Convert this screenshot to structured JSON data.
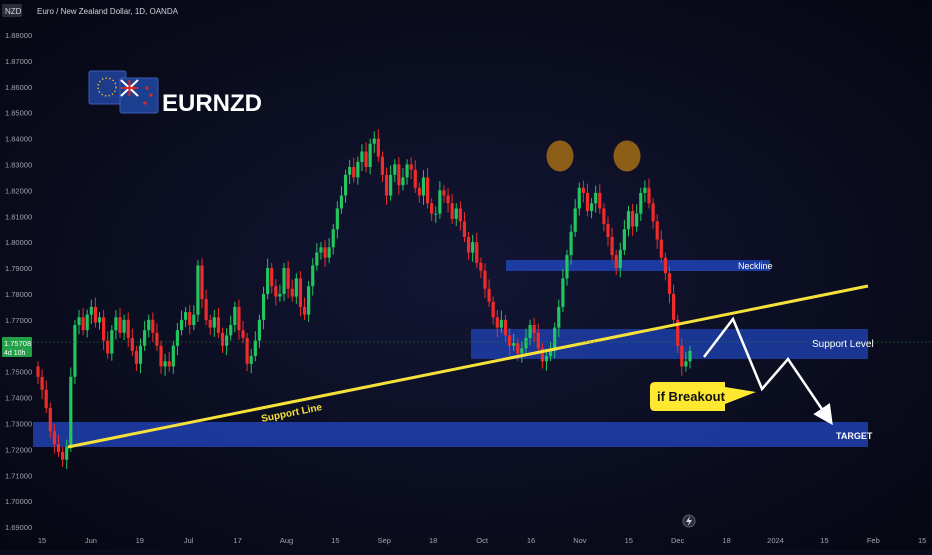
{
  "header": {
    "currency_badge": "NZD",
    "title": "Euro / New Zealand Dollar, 1D, OANDA"
  },
  "logo": {
    "ticker": "EURNZD"
  },
  "price_tag": {
    "price": "1.75708",
    "countdown": "4d 10h"
  },
  "annotations": {
    "neckline": "Neckline",
    "support_level": "Support Level",
    "support_line": "Support Line",
    "target": "TARGET",
    "callout": "if Breakout",
    "bolt_icon": "lightning-icon"
  },
  "colors": {
    "background": "#0a0c1c",
    "bull": "#22c55e",
    "bear": "#ef2b2b",
    "zone": "#1e40af",
    "trendline": "#f5e13a",
    "head_marker": "#f59e0b",
    "callout_bg": "#ffe830"
  },
  "chart_data": {
    "type": "candlestick",
    "symbol": "EURNZD",
    "timeframe": "1D",
    "ylim": [
      1.685,
      1.885
    ],
    "y_ticks": [
      "1.88000",
      "1.87000",
      "1.86000",
      "1.85000",
      "1.84000",
      "1.83000",
      "1.82000",
      "1.81000",
      "1.80000",
      "1.79000",
      "1.78000",
      "1.77000",
      "1.76000",
      "1.75000",
      "1.74000",
      "1.73000",
      "1.72000",
      "1.71000",
      "1.70000",
      "1.69000"
    ],
    "x_ticks": [
      "15",
      "Jun",
      "19",
      "Jul",
      "17",
      "Aug",
      "15",
      "Sep",
      "18",
      "Oct",
      "16",
      "Nov",
      "15",
      "Dec",
      "18",
      "2024",
      "15",
      "Feb",
      "15"
    ],
    "last_price": 1.75708,
    "close_series": [
      1.748,
      1.743,
      1.736,
      1.727,
      1.722,
      1.719,
      1.716,
      1.721,
      1.748,
      1.768,
      1.771,
      1.766,
      1.772,
      1.775,
      1.769,
      1.771,
      1.762,
      1.757,
      1.766,
      1.771,
      1.765,
      1.77,
      1.763,
      1.758,
      1.753,
      1.76,
      1.766,
      1.77,
      1.765,
      1.76,
      1.752,
      1.754,
      1.752,
      1.76,
      1.766,
      1.77,
      1.773,
      1.768,
      1.772,
      1.791,
      1.778,
      1.77,
      1.767,
      1.771,
      1.765,
      1.76,
      1.764,
      1.768,
      1.775,
      1.766,
      1.763,
      1.753,
      1.756,
      1.762,
      1.77,
      1.78,
      1.79,
      1.783,
      1.779,
      1.78,
      1.79,
      1.782,
      1.779,
      1.786,
      1.775,
      1.772,
      1.783,
      1.791,
      1.796,
      1.798,
      1.794,
      1.798,
      1.805,
      1.813,
      1.818,
      1.826,
      1.829,
      1.825,
      1.831,
      1.835,
      1.829,
      1.838,
      1.84,
      1.833,
      1.826,
      1.818,
      1.826,
      1.83,
      1.822,
      1.825,
      1.83,
      1.828,
      1.821,
      1.818,
      1.825,
      1.815,
      1.811,
      1.811,
      1.82,
      1.818,
      1.815,
      1.809,
      1.813,
      1.808,
      1.802,
      1.796,
      1.8,
      1.792,
      1.789,
      1.782,
      1.777,
      1.771,
      1.767,
      1.77,
      1.764,
      1.76,
      1.761,
      1.757,
      1.759,
      1.763,
      1.768,
      1.765,
      1.759,
      1.754,
      1.756,
      1.758,
      1.767,
      1.775,
      1.786,
      1.795,
      1.804,
      1.813,
      1.821,
      1.819,
      1.812,
      1.815,
      1.819,
      1.813,
      1.807,
      1.802,
      1.795,
      1.79,
      1.797,
      1.805,
      1.812,
      1.806,
      1.811,
      1.819,
      1.821,
      1.815,
      1.808,
      1.801,
      1.794,
      1.788,
      1.78,
      1.77,
      1.76,
      1.752,
      1.754,
      1.758
    ]
  }
}
